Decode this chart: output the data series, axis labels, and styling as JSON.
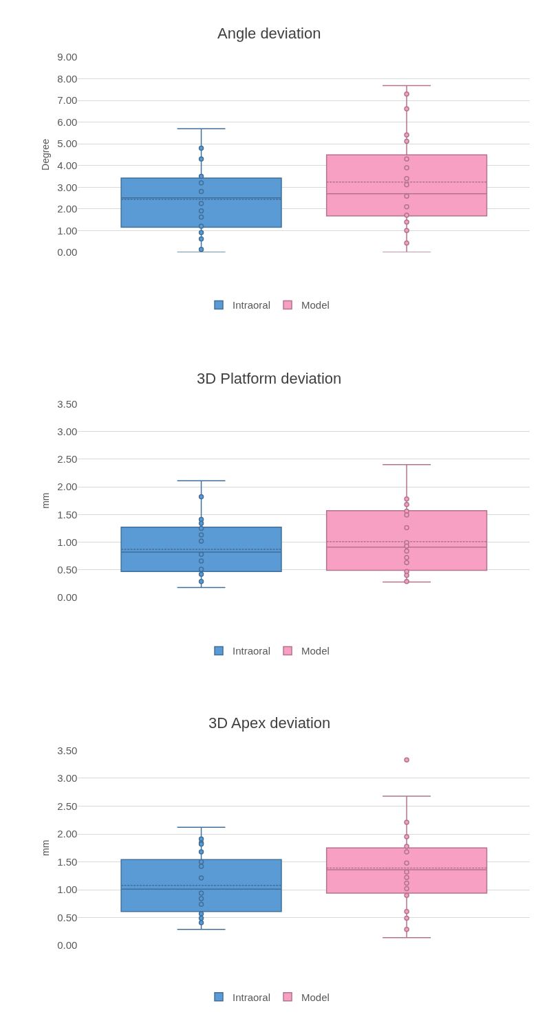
{
  "chart_data": [
    {
      "type": "box",
      "title": "Angle deviation",
      "ylabel": "Degree",
      "categories": [
        null
      ],
      "grid": "y",
      "legend": "bottom",
      "marker": "circle",
      "ylim": [
        0,
        9
      ],
      "yticks": [
        {
          "value": 0,
          "label": "0.00"
        },
        {
          "value": 1,
          "label": "1.00"
        },
        {
          "value": 2,
          "label": "2.00"
        },
        {
          "value": 3,
          "label": "3.00"
        },
        {
          "value": 4,
          "label": "4.00"
        },
        {
          "value": 5,
          "label": "5.00"
        },
        {
          "value": 6,
          "label": "6.00"
        },
        {
          "value": 7,
          "label": "7.00"
        },
        {
          "value": 8,
          "label": "8.00"
        },
        {
          "value": 9,
          "label": "9.00"
        }
      ],
      "series": [
        {
          "name": "Intraoral",
          "color": "#5b9bd5",
          "boxes": [
            {
              "low": 0.0,
              "q1": 1.15,
              "median": 2.51,
              "q3": 3.42,
              "high": 5.7,
              "mean": 2.44,
              "outliers": [
                4.8,
                4.3,
                3.5,
                3.2,
                2.8,
                2.25,
                1.91,
                1.62,
                1.2,
                0.91,
                0.61,
                0.13
              ]
            }
          ]
        },
        {
          "name": "Model",
          "color": "#f8a0c4",
          "boxes": [
            {
              "low": 0.0,
              "q1": 1.68,
              "median": 2.7,
              "q3": 4.49,
              "high": 7.69,
              "mean": 3.24,
              "outliers": [
                7.3,
                6.62,
                5.41,
                5.12,
                4.3,
                3.9,
                3.4,
                3.11,
                2.59,
                2.1,
                1.71,
                1.39,
                1.0,
                0.42
              ]
            }
          ]
        }
      ]
    },
    {
      "type": "box",
      "title": "3D Platform deviation",
      "ylabel": "mm",
      "categories": [
        null
      ],
      "grid": "y",
      "legend": "bottom",
      "marker": "circle",
      "ylim": [
        0,
        3.5
      ],
      "yticks": [
        {
          "value": 0,
          "label": "0.00"
        },
        {
          "value": 0.5,
          "label": "0.50"
        },
        {
          "value": 1,
          "label": "1.00"
        },
        {
          "value": 1.5,
          "label": "1.50"
        },
        {
          "value": 2,
          "label": "2.00"
        },
        {
          "value": 2.5,
          "label": "2.50"
        },
        {
          "value": 3,
          "label": "3.00"
        },
        {
          "value": 3.5,
          "label": "3.50"
        }
      ],
      "series": [
        {
          "name": "Intraoral",
          "color": "#5b9bd5",
          "boxes": [
            {
              "low": 0.18,
              "q1": 0.47,
              "median": 0.82,
              "q3": 1.27,
              "high": 2.11,
              "mean": 0.87,
              "outliers": [
                1.82,
                1.41,
                1.34,
                1.25,
                1.13,
                1.02,
                0.78,
                0.66,
                0.51,
                0.42,
                0.29
              ]
            }
          ]
        },
        {
          "name": "Model",
          "color": "#f8a0c4",
          "boxes": [
            {
              "low": 0.28,
              "q1": 0.49,
              "median": 0.91,
              "q3": 1.57,
              "high": 2.4,
              "mean": 1.01,
              "outliers": [
                1.78,
                1.68,
                1.56,
                1.49,
                1.26,
                0.99,
                0.93,
                0.84,
                0.72,
                0.63,
                0.47,
                0.4,
                0.29
              ]
            }
          ]
        }
      ]
    },
    {
      "type": "box",
      "title": "3D Apex deviation",
      "ylabel": "mm",
      "categories": [
        null
      ],
      "grid": "y",
      "legend": "bottom",
      "marker": "circle",
      "ylim": [
        0,
        3.5
      ],
      "yticks": [
        {
          "value": 0,
          "label": "0.00"
        },
        {
          "value": 0.5,
          "label": "0.50"
        },
        {
          "value": 1,
          "label": "1.00"
        },
        {
          "value": 1.5,
          "label": "1.50"
        },
        {
          "value": 2,
          "label": "2.00"
        },
        {
          "value": 2.5,
          "label": "2.50"
        },
        {
          "value": 3,
          "label": "3.00"
        },
        {
          "value": 3.5,
          "label": "3.50"
        }
      ],
      "series": [
        {
          "name": "Intraoral",
          "color": "#5b9bd5",
          "boxes": [
            {
              "low": 0.29,
              "q1": 0.61,
              "median": 1.01,
              "q3": 1.54,
              "high": 2.12,
              "mean": 1.08,
              "outliers": [
                1.91,
                1.84,
                1.82,
                1.68,
                1.5,
                1.42,
                1.21,
                0.94,
                0.84,
                0.74,
                0.57,
                0.49,
                0.41
              ]
            }
          ]
        },
        {
          "name": "Model",
          "color": "#f8a0c4",
          "boxes": [
            {
              "low": 0.14,
              "q1": 0.94,
              "median": 1.36,
              "q3": 1.75,
              "high": 2.68,
              "mean": 1.39,
              "outliers": [
                3.33,
                2.21,
                1.95,
                1.78,
                1.68,
                1.48,
                1.32,
                1.22,
                1.12,
                1.02,
                0.9,
                0.61,
                0.49,
                0.29
              ]
            }
          ]
        }
      ]
    }
  ]
}
